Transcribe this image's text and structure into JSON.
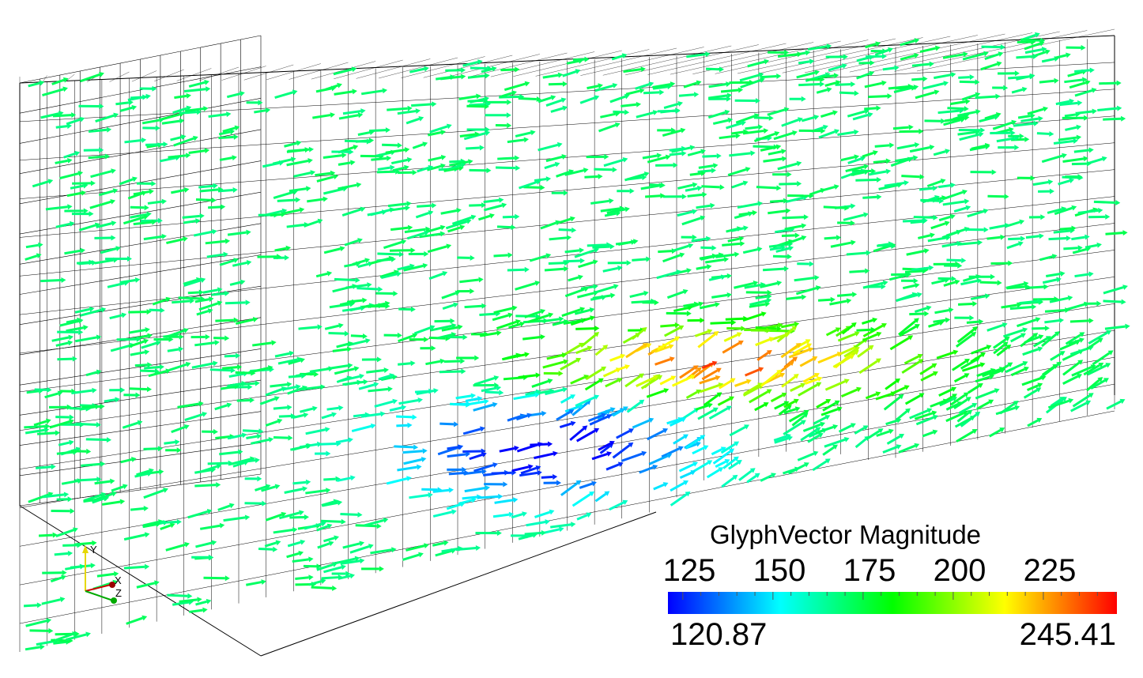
{
  "scalar_bar": {
    "title": "GlyphVector Magnitude",
    "tick_labels": [
      "125",
      "150",
      "175",
      "200",
      "225"
    ],
    "tick_values": [
      125,
      150,
      175,
      200,
      225
    ],
    "range_min": "120.87",
    "range_max": "245.41",
    "range_min_value": 120.87,
    "range_max_value": 245.41,
    "colormap": [
      "#0000ff",
      "#00ffff",
      "#00ff00",
      "#ffff00",
      "#ff0000"
    ]
  },
  "orientation_axes": {
    "x_label": "X",
    "y_label": "Y",
    "z_label": "Z",
    "x_color": "#cc0000",
    "y_color": "#e6d800",
    "z_color": "#00aa00"
  },
  "colors": {
    "grid_line": "#000000",
    "glyph_default": "#1e9e4a"
  },
  "icons": [
    "glyph-arrow-icon",
    "orientation-axes-icon"
  ]
}
